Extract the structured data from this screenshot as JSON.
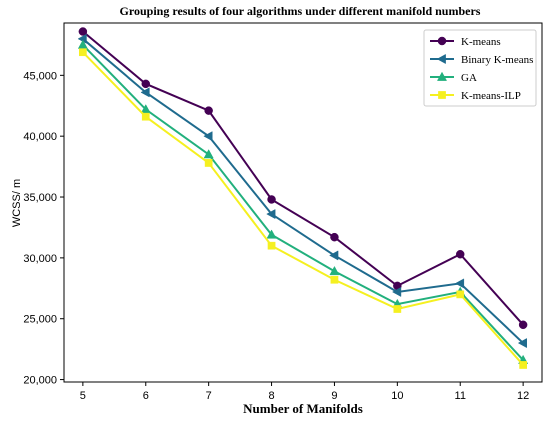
{
  "chart_data": {
    "type": "line",
    "title": "Grouping results of four algorithms under different manifold numbers",
    "xlabel": "Number of Manifolds",
    "ylabel": "WCSS/ m",
    "x": [
      5,
      6,
      7,
      8,
      9,
      10,
      11,
      12
    ],
    "x_ticks": [
      "5",
      "6",
      "7",
      "8",
      "9",
      "10",
      "11",
      "12"
    ],
    "y_ticks": [
      "20,000",
      "25,000",
      "30,000",
      "35,000",
      "40,000",
      "45,000"
    ],
    "y_tick_values": [
      20000,
      25000,
      30000,
      35000,
      40000,
      45000
    ],
    "xlim": [
      4.7,
      12.3
    ],
    "ylim": [
      19800,
      49300
    ],
    "grid": false,
    "legend_position": "top-right",
    "series": [
      {
        "name": "K-means",
        "color": "#440154",
        "marker": "circle",
        "values": [
          48600,
          44300,
          42100,
          34800,
          31700,
          27700,
          30300,
          24500
        ]
      },
      {
        "name": "Binary K-means",
        "color": "#1f6b8e",
        "marker": "triangle-left",
        "values": [
          48000,
          43600,
          40000,
          33600,
          30200,
          27200,
          27900,
          23000
        ]
      },
      {
        "name": "GA",
        "color": "#22b07d",
        "marker": "triangle-up",
        "values": [
          47500,
          42200,
          38500,
          31900,
          28900,
          26200,
          27200,
          21600
        ]
      },
      {
        "name": "K-means-ILP",
        "color": "#f5f020",
        "marker": "square",
        "values": [
          46900,
          41600,
          37800,
          31000,
          28200,
          25800,
          27000,
          21200
        ]
      }
    ]
  }
}
